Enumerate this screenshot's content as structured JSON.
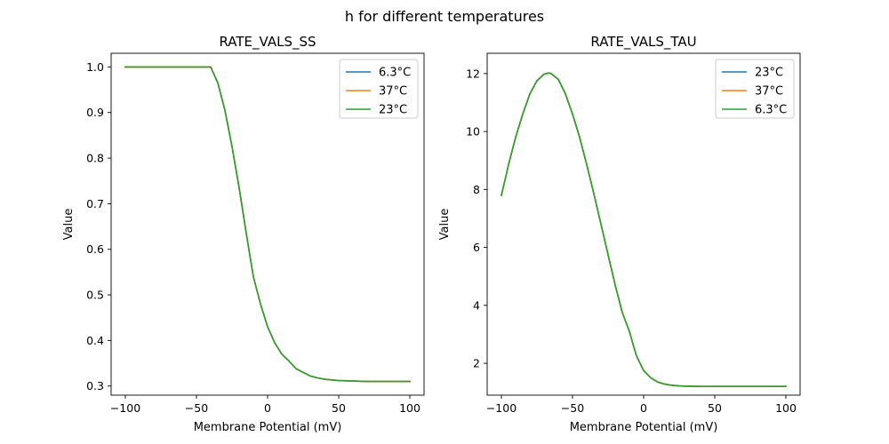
{
  "figure": {
    "suptitle": "h for different temperatures"
  },
  "chart_data": [
    {
      "type": "line",
      "title": "RATE_VALS_SS",
      "xlabel": "Membrane Potential (mV)",
      "ylabel": "Value",
      "xlim": [
        -110,
        110
      ],
      "ylim": [
        0.28,
        1.03
      ],
      "xticks": [
        -100,
        -50,
        0,
        50,
        100
      ],
      "yticks": [
        0.3,
        0.4,
        0.5,
        0.6,
        0.7,
        0.8,
        0.9,
        1.0
      ],
      "ytick_labels": [
        "0.3",
        "0.4",
        "0.5",
        "0.6",
        "0.7",
        "0.8",
        "0.9",
        "1.0"
      ],
      "legend_position": "upper right",
      "x": [
        -100,
        -90,
        -80,
        -70,
        -60,
        -50,
        -40,
        -35,
        -30,
        -25,
        -20,
        -15,
        -10,
        -5,
        0,
        5,
        10,
        15,
        20,
        25,
        30,
        35,
        40,
        50,
        60,
        70,
        80,
        90,
        100
      ],
      "series": [
        {
          "name": "6.3°C",
          "color": "#1f77b4",
          "values": [
            1.0,
            1.0,
            1.0,
            1.0,
            1.0,
            1.0,
            1.0,
            0.965,
            0.905,
            0.825,
            0.735,
            0.635,
            0.54,
            0.48,
            0.43,
            0.395,
            0.37,
            0.355,
            0.338,
            0.33,
            0.322,
            0.318,
            0.315,
            0.312,
            0.311,
            0.31,
            0.31,
            0.31,
            0.31
          ]
        },
        {
          "name": "37°C",
          "color": "#ff7f0e",
          "values": [
            1.0,
            1.0,
            1.0,
            1.0,
            1.0,
            1.0,
            1.0,
            0.965,
            0.905,
            0.825,
            0.735,
            0.635,
            0.54,
            0.48,
            0.43,
            0.395,
            0.37,
            0.355,
            0.338,
            0.33,
            0.322,
            0.318,
            0.315,
            0.312,
            0.311,
            0.31,
            0.31,
            0.31,
            0.31
          ]
        },
        {
          "name": "23°C",
          "color": "#2ca02c",
          "values": [
            1.0,
            1.0,
            1.0,
            1.0,
            1.0,
            1.0,
            1.0,
            0.965,
            0.905,
            0.825,
            0.735,
            0.635,
            0.54,
            0.48,
            0.43,
            0.395,
            0.37,
            0.355,
            0.338,
            0.33,
            0.322,
            0.318,
            0.315,
            0.312,
            0.311,
            0.31,
            0.31,
            0.31,
            0.31
          ]
        }
      ]
    },
    {
      "type": "line",
      "title": "RATE_VALS_TAU",
      "xlabel": "Membrane Potential (mV)",
      "ylabel": "Value",
      "xlim": [
        -110,
        110
      ],
      "ylim": [
        0.9,
        12.7
      ],
      "xticks": [
        -100,
        -50,
        0,
        50,
        100
      ],
      "yticks": [
        2,
        4,
        6,
        8,
        10,
        12
      ],
      "ytick_labels": [
        "2",
        "4",
        "6",
        "8",
        "10",
        "12"
      ],
      "legend_position": "upper right",
      "x": [
        -100,
        -95,
        -90,
        -85,
        -80,
        -75,
        -70,
        -67,
        -65,
        -60,
        -55,
        -50,
        -45,
        -40,
        -35,
        -30,
        -25,
        -20,
        -15,
        -10,
        -8,
        -5,
        0,
        5,
        10,
        15,
        20,
        25,
        30,
        40,
        50,
        60,
        80,
        100
      ],
      "series": [
        {
          "name": "23°C",
          "color": "#1f77b4",
          "values": [
            7.8,
            8.85,
            9.8,
            10.6,
            11.3,
            11.75,
            11.98,
            12.02,
            12.0,
            11.8,
            11.3,
            10.6,
            9.8,
            8.85,
            7.85,
            6.8,
            5.75,
            4.7,
            3.75,
            3.1,
            2.75,
            2.25,
            1.75,
            1.5,
            1.35,
            1.28,
            1.24,
            1.22,
            1.21,
            1.2,
            1.2,
            1.2,
            1.2,
            1.2
          ]
        },
        {
          "name": "37°C",
          "color": "#ff7f0e",
          "values": [
            7.8,
            8.85,
            9.8,
            10.6,
            11.3,
            11.75,
            11.98,
            12.02,
            12.0,
            11.8,
            11.3,
            10.6,
            9.8,
            8.85,
            7.85,
            6.8,
            5.75,
            4.7,
            3.75,
            3.1,
            2.75,
            2.25,
            1.75,
            1.5,
            1.35,
            1.28,
            1.24,
            1.22,
            1.21,
            1.2,
            1.2,
            1.2,
            1.2,
            1.2
          ]
        },
        {
          "name": "6.3°C",
          "color": "#2ca02c",
          "values": [
            7.8,
            8.85,
            9.8,
            10.6,
            11.3,
            11.75,
            11.98,
            12.02,
            12.0,
            11.8,
            11.3,
            10.6,
            9.8,
            8.85,
            7.85,
            6.8,
            5.75,
            4.7,
            3.75,
            3.1,
            2.75,
            2.25,
            1.75,
            1.5,
            1.35,
            1.28,
            1.24,
            1.22,
            1.21,
            1.2,
            1.2,
            1.2,
            1.2,
            1.2
          ]
        }
      ]
    }
  ]
}
